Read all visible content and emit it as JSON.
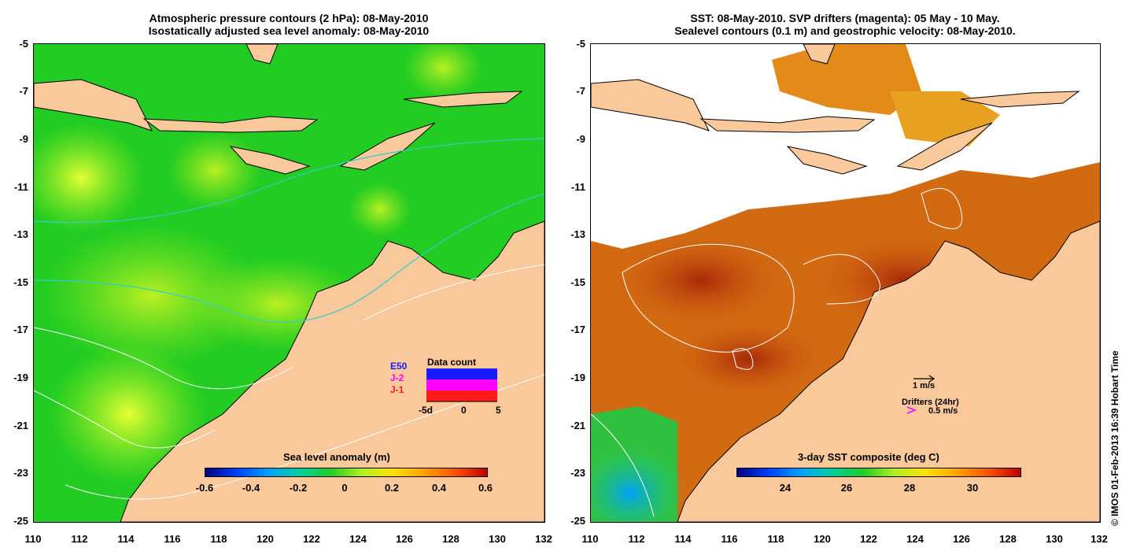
{
  "left_panel": {
    "title_line1": "Atmospheric pressure contours (2 hPa): 08-May-2010",
    "title_line2": "Isostatically adjusted sea level anomaly: 08-May-2010",
    "colorbar_title": "Sea level anomaly (m)",
    "colorbar_ticks": [
      "-0.6",
      "-0.4",
      "-0.2",
      "0",
      "0.2",
      "0.4",
      "0.6"
    ],
    "data_count_title": "Data count",
    "data_count_legend": [
      "E50",
      "J-2",
      "J-1"
    ],
    "data_count_axis": [
      "-5d",
      "0",
      "5"
    ],
    "legend_colors": {
      "E50": "#1a1aff",
      "J-2": "#ff00ff",
      "J-1": "#ff1a1a"
    }
  },
  "right_panel": {
    "title_line1": "SST: 08-May-2010. SVP drifters (magenta): 05 May - 10 May.",
    "title_line2": "Sealevel contours (0.1 m) and geostrophic velocity: 08-May-2010.",
    "colorbar_title": "3-day SST composite (deg C)",
    "colorbar_ticks": [
      "24",
      "26",
      "28",
      "30"
    ],
    "velocity_scale": "1 m/s",
    "drifters_label": "Drifters (24hr)",
    "drifters_speed": "0.5 m/s"
  },
  "axes": {
    "y_ticks": [
      "-5",
      "-7",
      "-9",
      "-11",
      "-13",
      "-15",
      "-17",
      "-19",
      "-21",
      "-23",
      "-25"
    ],
    "x_ticks": [
      "110",
      "112",
      "114",
      "116",
      "118",
      "120",
      "122",
      "124",
      "126",
      "128",
      "130",
      "132"
    ]
  },
  "credit": "© IMOS 01-Feb-2013 16:39 Hobart Time",
  "colors": {
    "land": "#f9c89b",
    "ocean_green": "#22cc22",
    "sst_warm": "#d06010"
  }
}
